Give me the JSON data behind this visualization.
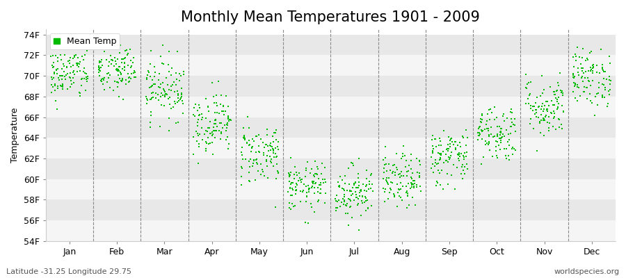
{
  "title": "Monthly Mean Temperatures 1901 - 2009",
  "ylabel": "Temperature",
  "xlabel_labels": [
    "Jan",
    "Feb",
    "Mar",
    "Apr",
    "May",
    "Jun",
    "Jul",
    "Aug",
    "Sep",
    "Oct",
    "Nov",
    "Dec"
  ],
  "ytick_labels": [
    "54F",
    "56F",
    "58F",
    "60F",
    "62F",
    "64F",
    "66F",
    "68F",
    "70F",
    "72F",
    "74F"
  ],
  "ytick_values": [
    54,
    56,
    58,
    60,
    62,
    64,
    66,
    68,
    70,
    72,
    74
  ],
  "ylim": [
    54,
    74.5
  ],
  "dot_color": "#00bb00",
  "bg_color": "#ffffff",
  "band_color_a": "#e8e8e8",
  "band_color_b": "#f5f5f5",
  "legend_label": "Mean Temp",
  "footer_left": "Latitude -31.25 Longitude 29.75",
  "footer_right": "worldspecies.org",
  "title_fontsize": 15,
  "axis_fontsize": 9,
  "footer_fontsize": 8,
  "monthly_means": [
    70.2,
    70.5,
    68.8,
    65.5,
    62.5,
    59.2,
    58.8,
    59.8,
    62.2,
    64.5,
    67.0,
    69.8
  ],
  "monthly_stds": [
    1.3,
    1.3,
    1.5,
    1.5,
    1.5,
    1.2,
    1.3,
    1.3,
    1.4,
    1.4,
    1.5,
    1.4
  ],
  "n_years": 109,
  "seed": 42,
  "dot_size": 4,
  "jitter": 0.4
}
